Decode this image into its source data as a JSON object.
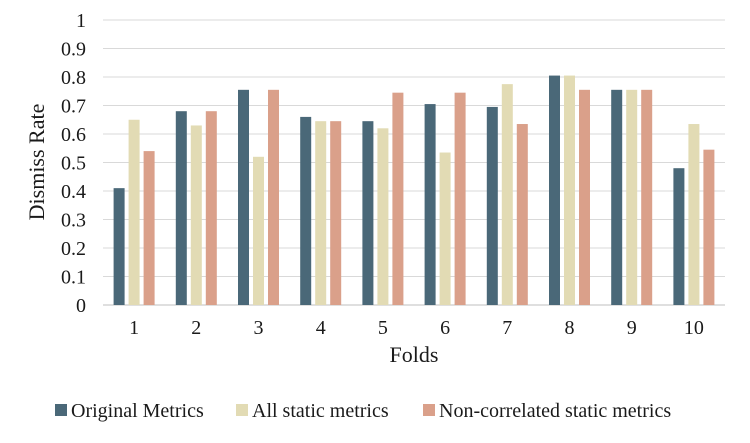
{
  "chart_data": {
    "type": "bar",
    "title": "",
    "xlabel": "Folds",
    "ylabel": "Dismiss Rate",
    "ylim": [
      0,
      1
    ],
    "yticks": [
      "0",
      "0.1",
      "0.2",
      "0.3",
      "0.4",
      "0.5",
      "0.6",
      "0.7",
      "0.8",
      "0.9",
      "1"
    ],
    "grid": true,
    "legend_position": "bottom",
    "categories": [
      "1",
      "2",
      "3",
      "4",
      "5",
      "6",
      "7",
      "8",
      "9",
      "10"
    ],
    "series": [
      {
        "name": "Original Metrics",
        "color": "#4a6878",
        "values": [
          0.41,
          0.68,
          0.755,
          0.66,
          0.645,
          0.705,
          0.695,
          0.805,
          0.755,
          0.48
        ]
      },
      {
        "name": "All static metrics",
        "color": "#e2dbb4",
        "values": [
          0.65,
          0.63,
          0.52,
          0.645,
          0.62,
          0.535,
          0.775,
          0.805,
          0.755,
          0.635
        ]
      },
      {
        "name": "Non-correlated static metrics",
        "color": "#daa08a",
        "values": [
          0.54,
          0.68,
          0.755,
          0.645,
          0.745,
          0.745,
          0.635,
          0.755,
          0.755,
          0.545
        ]
      }
    ]
  }
}
